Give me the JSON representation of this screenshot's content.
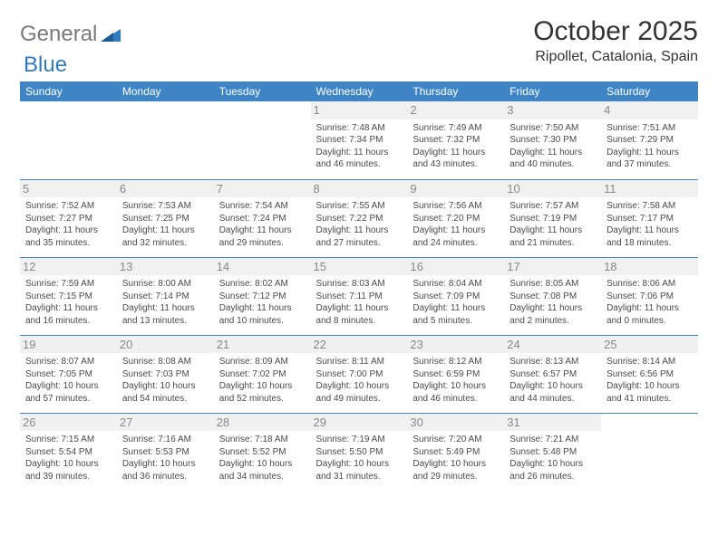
{
  "logo": {
    "general": "General",
    "blue": "Blue"
  },
  "title": "October 2025",
  "location": "Ripollet, Catalonia, Spain",
  "colors": {
    "header_bg": "#3f85c6",
    "header_text": "#ffffff",
    "day_num_bg": "#f1f1f1",
    "day_num_color": "#888888",
    "cell_text": "#4a4a4a",
    "logo_general": "#7a7a7a",
    "logo_blue": "#2f7ac0"
  },
  "day_headers": [
    "Sunday",
    "Monday",
    "Tuesday",
    "Wednesday",
    "Thursday",
    "Friday",
    "Saturday"
  ],
  "weeks": [
    [
      null,
      null,
      null,
      {
        "n": "1",
        "sr": "Sunrise: 7:48 AM",
        "ss": "Sunset: 7:34 PM",
        "d1": "Daylight: 11 hours",
        "d2": "and 46 minutes."
      },
      {
        "n": "2",
        "sr": "Sunrise: 7:49 AM",
        "ss": "Sunset: 7:32 PM",
        "d1": "Daylight: 11 hours",
        "d2": "and 43 minutes."
      },
      {
        "n": "3",
        "sr": "Sunrise: 7:50 AM",
        "ss": "Sunset: 7:30 PM",
        "d1": "Daylight: 11 hours",
        "d2": "and 40 minutes."
      },
      {
        "n": "4",
        "sr": "Sunrise: 7:51 AM",
        "ss": "Sunset: 7:29 PM",
        "d1": "Daylight: 11 hours",
        "d2": "and 37 minutes."
      }
    ],
    [
      {
        "n": "5",
        "sr": "Sunrise: 7:52 AM",
        "ss": "Sunset: 7:27 PM",
        "d1": "Daylight: 11 hours",
        "d2": "and 35 minutes."
      },
      {
        "n": "6",
        "sr": "Sunrise: 7:53 AM",
        "ss": "Sunset: 7:25 PM",
        "d1": "Daylight: 11 hours",
        "d2": "and 32 minutes."
      },
      {
        "n": "7",
        "sr": "Sunrise: 7:54 AM",
        "ss": "Sunset: 7:24 PM",
        "d1": "Daylight: 11 hours",
        "d2": "and 29 minutes."
      },
      {
        "n": "8",
        "sr": "Sunrise: 7:55 AM",
        "ss": "Sunset: 7:22 PM",
        "d1": "Daylight: 11 hours",
        "d2": "and 27 minutes."
      },
      {
        "n": "9",
        "sr": "Sunrise: 7:56 AM",
        "ss": "Sunset: 7:20 PM",
        "d1": "Daylight: 11 hours",
        "d2": "and 24 minutes."
      },
      {
        "n": "10",
        "sr": "Sunrise: 7:57 AM",
        "ss": "Sunset: 7:19 PM",
        "d1": "Daylight: 11 hours",
        "d2": "and 21 minutes."
      },
      {
        "n": "11",
        "sr": "Sunrise: 7:58 AM",
        "ss": "Sunset: 7:17 PM",
        "d1": "Daylight: 11 hours",
        "d2": "and 18 minutes."
      }
    ],
    [
      {
        "n": "12",
        "sr": "Sunrise: 7:59 AM",
        "ss": "Sunset: 7:15 PM",
        "d1": "Daylight: 11 hours",
        "d2": "and 16 minutes."
      },
      {
        "n": "13",
        "sr": "Sunrise: 8:00 AM",
        "ss": "Sunset: 7:14 PM",
        "d1": "Daylight: 11 hours",
        "d2": "and 13 minutes."
      },
      {
        "n": "14",
        "sr": "Sunrise: 8:02 AM",
        "ss": "Sunset: 7:12 PM",
        "d1": "Daylight: 11 hours",
        "d2": "and 10 minutes."
      },
      {
        "n": "15",
        "sr": "Sunrise: 8:03 AM",
        "ss": "Sunset: 7:11 PM",
        "d1": "Daylight: 11 hours",
        "d2": "and 8 minutes."
      },
      {
        "n": "16",
        "sr": "Sunrise: 8:04 AM",
        "ss": "Sunset: 7:09 PM",
        "d1": "Daylight: 11 hours",
        "d2": "and 5 minutes."
      },
      {
        "n": "17",
        "sr": "Sunrise: 8:05 AM",
        "ss": "Sunset: 7:08 PM",
        "d1": "Daylight: 11 hours",
        "d2": "and 2 minutes."
      },
      {
        "n": "18",
        "sr": "Sunrise: 8:06 AM",
        "ss": "Sunset: 7:06 PM",
        "d1": "Daylight: 11 hours",
        "d2": "and 0 minutes."
      }
    ],
    [
      {
        "n": "19",
        "sr": "Sunrise: 8:07 AM",
        "ss": "Sunset: 7:05 PM",
        "d1": "Daylight: 10 hours",
        "d2": "and 57 minutes."
      },
      {
        "n": "20",
        "sr": "Sunrise: 8:08 AM",
        "ss": "Sunset: 7:03 PM",
        "d1": "Daylight: 10 hours",
        "d2": "and 54 minutes."
      },
      {
        "n": "21",
        "sr": "Sunrise: 8:09 AM",
        "ss": "Sunset: 7:02 PM",
        "d1": "Daylight: 10 hours",
        "d2": "and 52 minutes."
      },
      {
        "n": "22",
        "sr": "Sunrise: 8:11 AM",
        "ss": "Sunset: 7:00 PM",
        "d1": "Daylight: 10 hours",
        "d2": "and 49 minutes."
      },
      {
        "n": "23",
        "sr": "Sunrise: 8:12 AM",
        "ss": "Sunset: 6:59 PM",
        "d1": "Daylight: 10 hours",
        "d2": "and 46 minutes."
      },
      {
        "n": "24",
        "sr": "Sunrise: 8:13 AM",
        "ss": "Sunset: 6:57 PM",
        "d1": "Daylight: 10 hours",
        "d2": "and 44 minutes."
      },
      {
        "n": "25",
        "sr": "Sunrise: 8:14 AM",
        "ss": "Sunset: 6:56 PM",
        "d1": "Daylight: 10 hours",
        "d2": "and 41 minutes."
      }
    ],
    [
      {
        "n": "26",
        "sr": "Sunrise: 7:15 AM",
        "ss": "Sunset: 5:54 PM",
        "d1": "Daylight: 10 hours",
        "d2": "and 39 minutes."
      },
      {
        "n": "27",
        "sr": "Sunrise: 7:16 AM",
        "ss": "Sunset: 5:53 PM",
        "d1": "Daylight: 10 hours",
        "d2": "and 36 minutes."
      },
      {
        "n": "28",
        "sr": "Sunrise: 7:18 AM",
        "ss": "Sunset: 5:52 PM",
        "d1": "Daylight: 10 hours",
        "d2": "and 34 minutes."
      },
      {
        "n": "29",
        "sr": "Sunrise: 7:19 AM",
        "ss": "Sunset: 5:50 PM",
        "d1": "Daylight: 10 hours",
        "d2": "and 31 minutes."
      },
      {
        "n": "30",
        "sr": "Sunrise: 7:20 AM",
        "ss": "Sunset: 5:49 PM",
        "d1": "Daylight: 10 hours",
        "d2": "and 29 minutes."
      },
      {
        "n": "31",
        "sr": "Sunrise: 7:21 AM",
        "ss": "Sunset: 5:48 PM",
        "d1": "Daylight: 10 hours",
        "d2": "and 26 minutes."
      },
      null
    ]
  ]
}
